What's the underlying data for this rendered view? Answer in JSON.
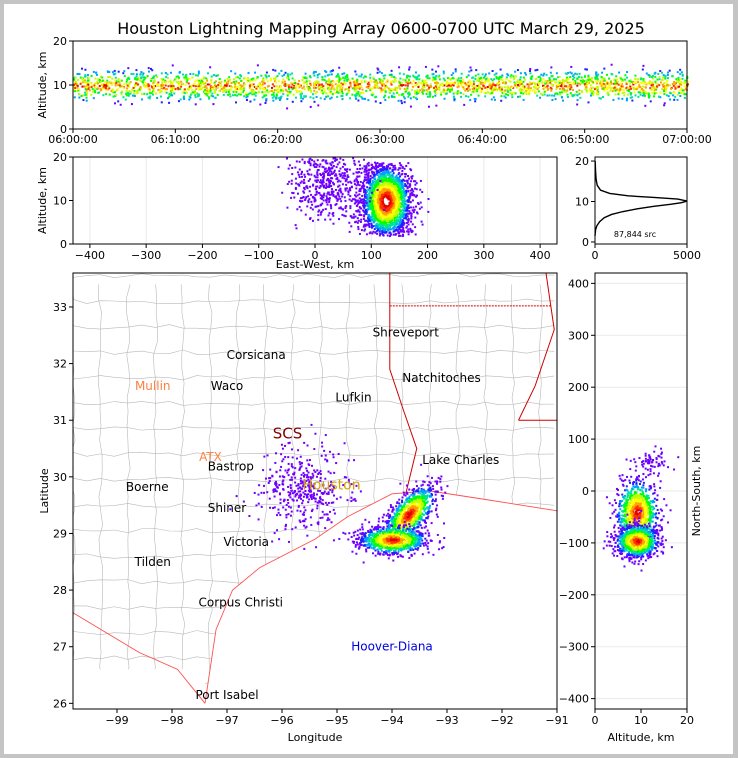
{
  "title": "Houston Lightning Mapping Array 0600-0700 UTC March 29, 2025",
  "colors": {
    "density_scale": [
      "#6f00ff",
      "#2020ff",
      "#00a0ff",
      "#00e0a0",
      "#00ff00",
      "#c0ff00",
      "#ffff00",
      "#ffa000",
      "#ff3000",
      "#e00000",
      "#ffffff"
    ],
    "state_border": "#d00000",
    "county_border": "#b8b8b8",
    "coast": "#ff5050"
  },
  "source_count_label": "87,844 src",
  "chart_data": [
    {
      "type": "scatter",
      "name": "time-height",
      "xlabel": "",
      "ylabel": "Altitude, km",
      "x_ticks": [
        "06:00:00",
        "06:10:00",
        "06:20:00",
        "06:30:00",
        "06:40:00",
        "06:50:00",
        "07:00:00"
      ],
      "xlim": [
        "06:00:00",
        "07:00:00"
      ],
      "ylim": [
        0,
        20
      ],
      "y_ticks": [
        0,
        10,
        20
      ],
      "altitude_band_km": [
        6,
        14
      ],
      "core_altitude_km": 10
    },
    {
      "type": "scatter",
      "name": "east-west-altitude",
      "xlabel": "East-West, km",
      "ylabel": "Altitude, km",
      "xlim": [
        -430,
        430
      ],
      "x_ticks": [
        -400,
        -300,
        -200,
        -100,
        0,
        100,
        200,
        300,
        400
      ],
      "ylim": [
        0,
        20
      ],
      "y_ticks": [
        0,
        10,
        20
      ],
      "clusters": [
        {
          "x_range_km": [
            100,
            190
          ],
          "alt_range_km": [
            2,
            19
          ],
          "core_x_km": 125,
          "core_alt_km": 10
        },
        {
          "x_range_km": [
            -40,
            100
          ],
          "alt_range_km": [
            3,
            20
          ],
          "core_x_km": 20,
          "core_alt_km": 14
        }
      ]
    },
    {
      "type": "line",
      "name": "altitude-histogram",
      "xlabel": "",
      "ylabel": "",
      "xlim": [
        0,
        5000
      ],
      "x_ticks": [
        0,
        5000
      ],
      "ylim": [
        0,
        20
      ],
      "y_ticks": [
        0,
        10,
        20
      ],
      "x": [
        0,
        30,
        100,
        250,
        500,
        900,
        1500,
        2300,
        3200,
        4100,
        4700,
        5000,
        4500,
        3200,
        1800,
        800,
        300,
        120,
        60,
        30,
        10
      ],
      "y": [
        1.5,
        3,
        4,
        5,
        6,
        6.8,
        7.5,
        8.2,
        8.8,
        9.3,
        9.7,
        10.1,
        10.6,
        11,
        11.4,
        12,
        12.8,
        14,
        15.5,
        17.5,
        20
      ]
    },
    {
      "type": "scatter",
      "name": "plan-view",
      "xlabel": "Longitude",
      "ylabel": "Latitude",
      "xlim": [
        -99.8,
        -91
      ],
      "x_ticks": [
        -99,
        -98,
        -97,
        -96,
        -95,
        -94,
        -93,
        -92,
        -91
      ],
      "ylim": [
        25.9,
        33.6
      ],
      "y_ticks": [
        26,
        27,
        28,
        29,
        30,
        31,
        32,
        33
      ],
      "clusters": [
        {
          "lon": -93.7,
          "lat": 29.35,
          "spread_lon": 0.25,
          "spread_lat": 0.25
        },
        {
          "lon": -94.0,
          "lat": 28.9,
          "spread_lon": 0.3,
          "spread_lat": 0.12
        },
        {
          "lon": -95.6,
          "lat": 29.8,
          "spread_lon": 0.4,
          "spread_lat": 0.35
        }
      ]
    },
    {
      "type": "scatter",
      "name": "north-south-altitude",
      "xlabel": "Altitude, km",
      "ylabel": "North-South, km",
      "xlim": [
        0,
        20
      ],
      "x_ticks": [
        0,
        10,
        20
      ],
      "ylim": [
        -420,
        420
      ],
      "y_ticks": [
        -400,
        -300,
        -200,
        -100,
        0,
        100,
        200,
        300,
        400
      ],
      "clusters": [
        {
          "ns_km": -40,
          "alt_km": 9,
          "ns_spread_km": 30
        },
        {
          "ns_km": -95,
          "alt_km": 9,
          "ns_spread_km": 15
        },
        {
          "ns_km": 60,
          "alt_km": 12,
          "ns_spread_km": 10
        }
      ]
    }
  ],
  "cities": [
    {
      "name": "Shreveport",
      "lon": -93.75,
      "lat": 32.55
    },
    {
      "name": "Corsicana",
      "lon": -96.47,
      "lat": 32.15
    },
    {
      "name": "Natchitoches",
      "lon": -93.1,
      "lat": 31.75
    },
    {
      "name": "Mullin",
      "lon": -98.35,
      "lat": 31.6,
      "color": "#ff8040"
    },
    {
      "name": "Waco",
      "lon": -97.0,
      "lat": 31.6
    },
    {
      "name": "Lufkin",
      "lon": -94.7,
      "lat": 31.4
    },
    {
      "name": "SCS",
      "lon": -95.9,
      "lat": 30.75,
      "color": "#800000",
      "size": 15
    },
    {
      "name": "Lake Charles",
      "lon": -92.75,
      "lat": 30.3
    },
    {
      "name": "ATX",
      "lon": -97.3,
      "lat": 30.35,
      "color": "#ff8040"
    },
    {
      "name": "Bastrop",
      "lon": -96.93,
      "lat": 30.18
    },
    {
      "name": "Houston",
      "lon": -95.1,
      "lat": 29.85,
      "color": "#d4a000",
      "size": 14
    },
    {
      "name": "Boerne",
      "lon": -98.45,
      "lat": 29.82
    },
    {
      "name": "Shiner",
      "lon": -97.0,
      "lat": 29.45
    },
    {
      "name": "Victoria",
      "lon": -96.65,
      "lat": 28.85
    },
    {
      "name": "Tilden",
      "lon": -98.35,
      "lat": 28.5
    },
    {
      "name": "Corpus Christi",
      "lon": -96.75,
      "lat": 27.78
    },
    {
      "name": "Hoover-Diana",
      "lon": -94.0,
      "lat": 27.0,
      "color": "#0000e0"
    },
    {
      "name": "Port Isabel",
      "lon": -97.0,
      "lat": 26.15
    }
  ]
}
